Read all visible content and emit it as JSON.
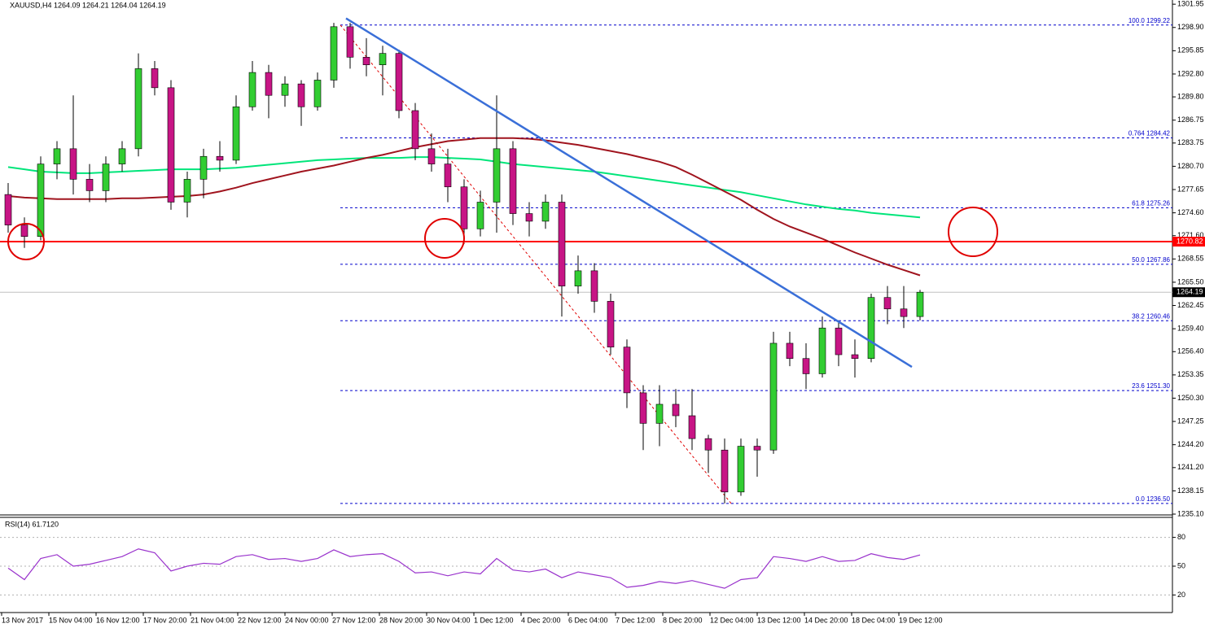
{
  "chart_data": [
    {
      "type": "candlestick",
      "title": "XAUUSD,H4 1264.09 1264.21 1264.04 1264.19",
      "open": [
        1277,
        1273,
        1271.5,
        1281,
        1283,
        1279,
        1277.5,
        1281,
        1283,
        1293.5,
        1291,
        1276,
        1279,
        1282,
        1281.5,
        1288.5,
        1293,
        1290,
        1291.5,
        1288.5,
        1292,
        1299,
        1295,
        1294,
        1295.5,
        1288,
        1283,
        1281,
        1278,
        1272.5,
        1276,
        1283,
        1274.5,
        1273.5,
        1276,
        1265,
        1267,
        1263,
        1257,
        1251,
        1247,
        1249.5,
        1248,
        1245,
        1243.5,
        1238,
        1244,
        1243.5,
        1257.5,
        1255.5,
        1253.5,
        1259.5,
        1256,
        1255.5,
        1263.5,
        1262,
        1261
      ],
      "high": [
        1278.5,
        1274,
        1282,
        1284,
        1290,
        1281,
        1282,
        1284,
        1295.5,
        1294.5,
        1292,
        1280,
        1283,
        1284,
        1290,
        1294.5,
        1294,
        1292.5,
        1292,
        1293,
        1299.5,
        1299.5,
        1297.5,
        1296.5,
        1296,
        1289,
        1285,
        1283,
        1279,
        1277.5,
        1290,
        1284,
        1276,
        1277,
        1277,
        1269,
        1268,
        1264,
        1258,
        1252,
        1252,
        1251.5,
        1251.5,
        1245.5,
        1245,
        1245,
        1245,
        1259,
        1259,
        1257.5,
        1261,
        1260.5,
        1258,
        1264,
        1265,
        1265,
        1264.5
      ],
      "low": [
        1272,
        1270,
        1271,
        1279,
        1277,
        1276,
        1276,
        1280,
        1282,
        1290,
        1275,
        1274,
        1276.5,
        1280,
        1281,
        1288,
        1287,
        1288.5,
        1286,
        1288,
        1291,
        1293.5,
        1292.5,
        1290,
        1287,
        1281.5,
        1280,
        1276,
        1270.5,
        1271.5,
        1272,
        1273,
        1271.5,
        1272.5,
        1261,
        1264,
        1261.5,
        1256,
        1249,
        1243.5,
        1244,
        1246.5,
        1243.5,
        1240.5,
        1236.5,
        1237.5,
        1240,
        1243,
        1254.5,
        1251.5,
        1253,
        1254.5,
        1253,
        1255,
        1260,
        1259.5,
        1260.5
      ],
      "close": [
        1273,
        1271.5,
        1281,
        1283,
        1279,
        1277.5,
        1281,
        1283,
        1293.5,
        1291,
        1276,
        1279,
        1282,
        1281.5,
        1288.5,
        1293,
        1290,
        1291.5,
        1288.5,
        1292,
        1299,
        1295,
        1294,
        1295.5,
        1288,
        1283,
        1281,
        1278,
        1272.5,
        1276,
        1283,
        1274.5,
        1273.5,
        1276,
        1265,
        1267,
        1263,
        1257,
        1251,
        1247,
        1249.5,
        1248,
        1245,
        1243.5,
        1238,
        1244,
        1243.5,
        1257.5,
        1255.5,
        1253.5,
        1259.5,
        1256,
        1255.5,
        1263.5,
        1262,
        1261,
        1264.19
      ],
      "bull_color": "#32cd32",
      "bear_color": "#c71585",
      "moving_averages": [
        {
          "color": "#00e57a",
          "values": [
            1280.6,
            1280.3,
            1280.0,
            1279.9,
            1279.8,
            1279.8,
            1279.9,
            1280.0,
            1280.1,
            1280.2,
            1280.3,
            1280.3,
            1280.3,
            1280.4,
            1280.5,
            1280.7,
            1280.9,
            1281.1,
            1281.3,
            1281.5,
            1281.6,
            1281.7,
            1281.8,
            1281.8,
            1281.8,
            1281.9,
            1281.9,
            1281.8,
            1281.7,
            1281.6,
            1281.3,
            1281.0,
            1280.8,
            1280.6,
            1280.4,
            1280.2,
            1280.0,
            1279.7,
            1279.4,
            1279.1,
            1278.8,
            1278.5,
            1278.2,
            1277.9,
            1277.6,
            1277.3,
            1276.9,
            1276.5,
            1276.1,
            1275.7,
            1275.4,
            1275.1,
            1274.9,
            1274.6,
            1274.4,
            1274.2,
            1274.0
          ]
        },
        {
          "color": "#a0141e",
          "values": [
            1276.8,
            1276.6,
            1276.5,
            1276.4,
            1276.4,
            1276.4,
            1276.4,
            1276.5,
            1276.5,
            1276.6,
            1276.7,
            1276.8,
            1277.0,
            1277.4,
            1277.9,
            1278.5,
            1279.0,
            1279.5,
            1280.0,
            1280.4,
            1280.8,
            1281.3,
            1281.8,
            1282.2,
            1282.7,
            1283.2,
            1283.6,
            1284.0,
            1284.2,
            1284.4,
            1284.4,
            1284.4,
            1284.3,
            1284.1,
            1283.8,
            1283.5,
            1283.1,
            1282.7,
            1282.3,
            1281.8,
            1281.3,
            1280.6,
            1279.6,
            1278.5,
            1277.4,
            1276.3,
            1275.0,
            1273.8,
            1272.8,
            1272.0,
            1271.2,
            1270.3,
            1269.4,
            1268.6,
            1267.8,
            1267.1,
            1266.4
          ]
        }
      ],
      "ylim": [
        1235.1,
        1302.5
      ],
      "yticks": [
        1301.95,
        {
          "value": 1298.9,
          "label": "1298.90"
        },
        1295.85,
        {
          "value": 1292.8,
          "label": "1292.80"
        },
        {
          "value": 1289.8,
          "label": "1289.80"
        },
        1286.75,
        1283.75,
        {
          "value": 1280.7,
          "label": "1280.70"
        },
        1277.65,
        {
          "value": 1274.6,
          "label": "1274.60"
        },
        {
          "value": 1271.6,
          "label": "1271.60"
        },
        1268.55,
        {
          "value": 1265.5,
          "label": "1265.50"
        },
        1262.45,
        {
          "value": 1259.4,
          "label": "1259.40"
        },
        {
          "value": 1256.4,
          "label": "1256.40"
        },
        1253.35,
        {
          "value": 1250.3,
          "label": "1250.30"
        },
        1247.25,
        {
          "value": 1244.2,
          "label": "1244.20"
        },
        {
          "value": 1241.2,
          "label": "1241.20"
        },
        1238.15,
        {
          "value": 1235.1,
          "label": "1235.10"
        }
      ],
      "fib_levels": [
        {
          "value": 1299.22,
          "label": "100.0 1299.22"
        },
        {
          "value": 1284.42,
          "label": "0.764 1284.42"
        },
        {
          "value": 1275.26,
          "label": "61.8 1275.26"
        },
        {
          "value": 1267.86,
          "label": "50.0 1267.86"
        },
        {
          "value": 1260.46,
          "label": "38.2 1260.46"
        },
        {
          "value": 1251.3,
          "label": "23.6 1251.30"
        },
        {
          "value": 1236.5,
          "label": "0.0 1236.50"
        }
      ],
      "support": 1270.82,
      "last_price": 1264.19,
      "trendline": {
        "x": [
          20.75,
          55.5
        ],
        "y": [
          1300.1,
          1254.4
        ]
      },
      "fib_line": {
        "x": [
          20.4,
          44.4
        ],
        "y": [
          1299.22,
          1236.5
        ]
      },
      "x_labels": [
        "13 Nov 2017",
        "15 Nov 04:00",
        "16 Nov 12:00",
        "17 Nov 20:00",
        "21 Nov 04:00",
        "22 Nov 12:00",
        "24 Nov 00:00",
        "27 Nov 12:00",
        "28 Nov 20:00",
        "30 Nov 04:00",
        "1 Dec 12:00",
        "4 Dec 20:00",
        "6 Dec 04:00",
        "7 Dec 12:00",
        "8 Dec 20:00",
        "12 Dec 04:00",
        "13 Dec 12:00",
        "14 Dec 20:00",
        "18 Dec 04:00",
        "19 Dec 12:00"
      ]
    },
    {
      "type": "line",
      "title": "RSI(14) 61.7120",
      "color": "#9932cc",
      "values": [
        48,
        36,
        58,
        62,
        50,
        52,
        56,
        60,
        68,
        64,
        45,
        50,
        53,
        52,
        60,
        62,
        57,
        58,
        55,
        58,
        67,
        60,
        62,
        63,
        55,
        43,
        44,
        40,
        44,
        42,
        58,
        46,
        44,
        47,
        38,
        44,
        41,
        38,
        28,
        30,
        34,
        32,
        35,
        31,
        27,
        36,
        38,
        60,
        58,
        55,
        60,
        55,
        56,
        63,
        59,
        57,
        61.712
      ],
      "ylim": [
        0,
        100
      ],
      "yticks": [
        20,
        50,
        80
      ]
    }
  ]
}
